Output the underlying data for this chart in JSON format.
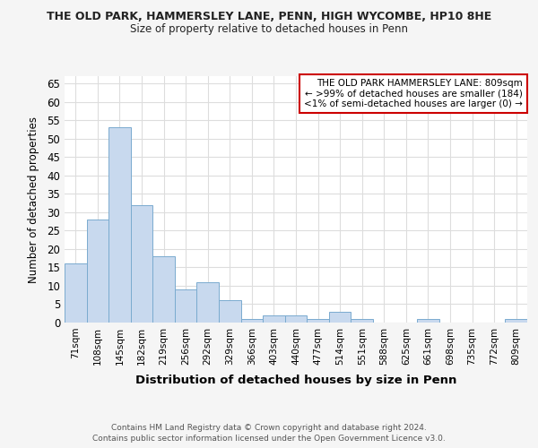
{
  "title1": "THE OLD PARK, HAMMERSLEY LANE, PENN, HIGH WYCOMBE, HP10 8HE",
  "title2": "Size of property relative to detached houses in Penn",
  "xlabel": "Distribution of detached houses by size in Penn",
  "ylabel": "Number of detached properties",
  "categories": [
    "71sqm",
    "108sqm",
    "145sqm",
    "182sqm",
    "219sqm",
    "256sqm",
    "292sqm",
    "329sqm",
    "366sqm",
    "403sqm",
    "440sqm",
    "477sqm",
    "514sqm",
    "551sqm",
    "588sqm",
    "625sqm",
    "661sqm",
    "698sqm",
    "735sqm",
    "772sqm",
    "809sqm"
  ],
  "values": [
    16,
    28,
    53,
    32,
    18,
    9,
    11,
    6,
    1,
    2,
    2,
    1,
    3,
    1,
    0,
    0,
    1,
    0,
    0,
    0,
    1
  ],
  "bar_color": "#c8d9ee",
  "bar_edge_color": "#7aabcf",
  "annotation_title": "THE OLD PARK HAMMERSLEY LANE: 809sqm",
  "annotation_line1": "← >99% of detached houses are smaller (184)",
  "annotation_line2": "<1% of semi-detached houses are larger (0) →",
  "annotation_box_color": "#ffffff",
  "annotation_border_color": "#cc0000",
  "ylim": [
    0,
    67
  ],
  "yticks": [
    0,
    5,
    10,
    15,
    20,
    25,
    30,
    35,
    40,
    45,
    50,
    55,
    60,
    65
  ],
  "footer1": "Contains HM Land Registry data © Crown copyright and database right 2024.",
  "footer2": "Contains public sector information licensed under the Open Government Licence v3.0.",
  "bg_color": "#f5f5f5",
  "plot_bg_color": "#ffffff",
  "grid_color": "#dddddd",
  "title_color": "#222222",
  "footer_color": "#555555"
}
